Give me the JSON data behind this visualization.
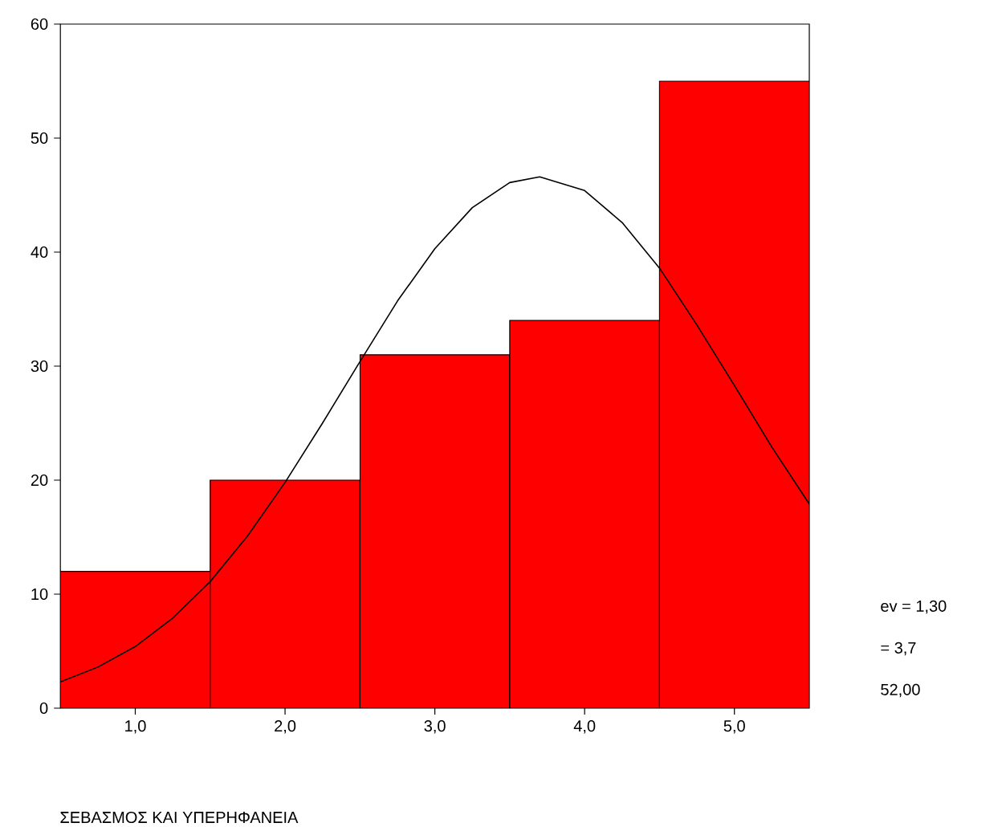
{
  "chart_data": {
    "type": "histogram",
    "xlabel": "ΣΕΒΑΣΜΟΣ ΚΑΙ ΥΠΕΡΗΦΑΝΕΙΑ",
    "bins": [
      0.5,
      1.5,
      2.5,
      3.5,
      4.5,
      5.5
    ],
    "values": [
      12,
      20,
      31,
      34,
      55
    ],
    "color": "#ff0000",
    "series": [
      {
        "type": "line",
        "color": "#000000",
        "x": [
          0.5,
          0.75,
          1.0,
          1.25,
          1.5,
          1.75,
          2.0,
          2.25,
          2.5,
          2.75,
          3.0,
          3.25,
          3.5,
          3.7,
          4.0,
          4.25,
          4.5,
          4.75,
          5.0,
          5.25,
          5.5
        ],
        "values": [
          2.3,
          3.6,
          5.4,
          7.9,
          11.1,
          15.1,
          19.8,
          25.0,
          30.4,
          35.7,
          40.3,
          43.9,
          46.1,
          46.6,
          45.4,
          42.6,
          38.6,
          33.6,
          28.3,
          22.9,
          17.9
        ]
      }
    ],
    "xlim": [
      0.5,
      5.5
    ],
    "ylim": [
      0,
      60
    ],
    "xticks": [
      {
        "value": 1,
        "label": "1,0"
      },
      {
        "value": 2,
        "label": "2,0"
      },
      {
        "value": 3,
        "label": "3,0"
      },
      {
        "value": 4,
        "label": "4,0"
      },
      {
        "value": 5,
        "label": "5,0"
      }
    ],
    "yticks": [
      0,
      10,
      20,
      30,
      40,
      50,
      60
    ],
    "annotations": [
      "ev = 1,30",
      "= 3,7",
      "52,00"
    ]
  }
}
